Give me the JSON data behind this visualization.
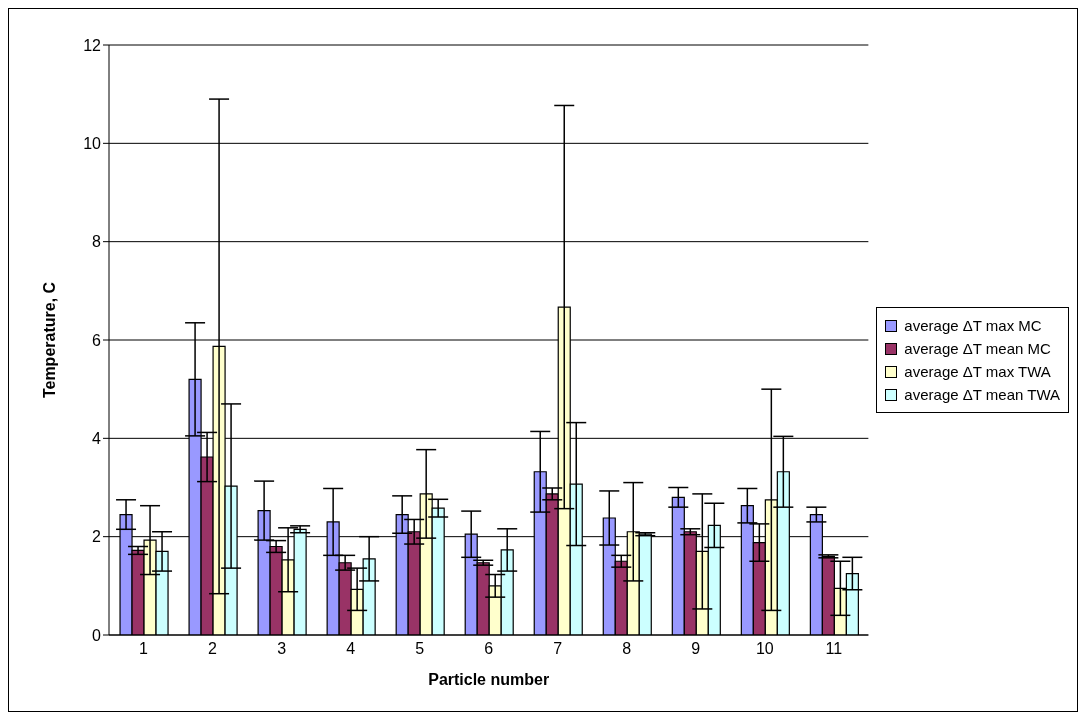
{
  "chart_data": {
    "type": "bar",
    "xlabel": "Particle number",
    "ylabel": "Temperature, C",
    "categories": [
      "1",
      "2",
      "3",
      "4",
      "5",
      "6",
      "7",
      "8",
      "9",
      "10",
      "11"
    ],
    "series": [
      {
        "name": "average ΔT max MC",
        "color": "#9999ff",
        "values": [
          2.45,
          5.2,
          2.53,
          2.3,
          2.45,
          2.05,
          3.32,
          2.38,
          2.8,
          2.63,
          2.45
        ],
        "errors": [
          0.3,
          1.15,
          0.6,
          0.68,
          0.38,
          0.47,
          0.82,
          0.55,
          0.2,
          0.35,
          0.15
        ]
      },
      {
        "name": "average ΔT mean MC",
        "color": "#993366",
        "values": [
          1.72,
          3.62,
          1.8,
          1.47,
          2.1,
          1.47,
          2.87,
          1.5,
          2.1,
          1.88,
          1.6
        ],
        "errors": [
          0.08,
          0.5,
          0.12,
          0.15,
          0.25,
          0.05,
          0.12,
          0.12,
          0.06,
          0.38,
          0.03
        ]
      },
      {
        "name": "average ΔT max TWA",
        "color": "#ffffcc",
        "values": [
          1.93,
          5.87,
          1.53,
          0.93,
          2.87,
          1.0,
          6.67,
          2.1,
          1.7,
          2.75,
          0.95
        ],
        "errors": [
          0.7,
          5.03,
          0.65,
          0.43,
          0.9,
          0.23,
          4.1,
          1.0,
          1.17,
          2.25,
          0.55
        ]
      },
      {
        "name": "average ΔT mean TWA",
        "color": "#ccffff",
        "values": [
          1.7,
          3.03,
          2.15,
          1.55,
          2.58,
          1.73,
          3.07,
          2.05,
          2.23,
          3.32,
          1.25
        ],
        "errors": [
          0.4,
          1.67,
          0.07,
          0.45,
          0.18,
          0.43,
          1.25,
          0.03,
          0.45,
          0.72,
          0.33
        ]
      }
    ],
    "ylim": [
      0,
      12
    ],
    "yticks": [
      0,
      2,
      4,
      6,
      8,
      10,
      12
    ],
    "grid": "y",
    "legend": "right"
  }
}
